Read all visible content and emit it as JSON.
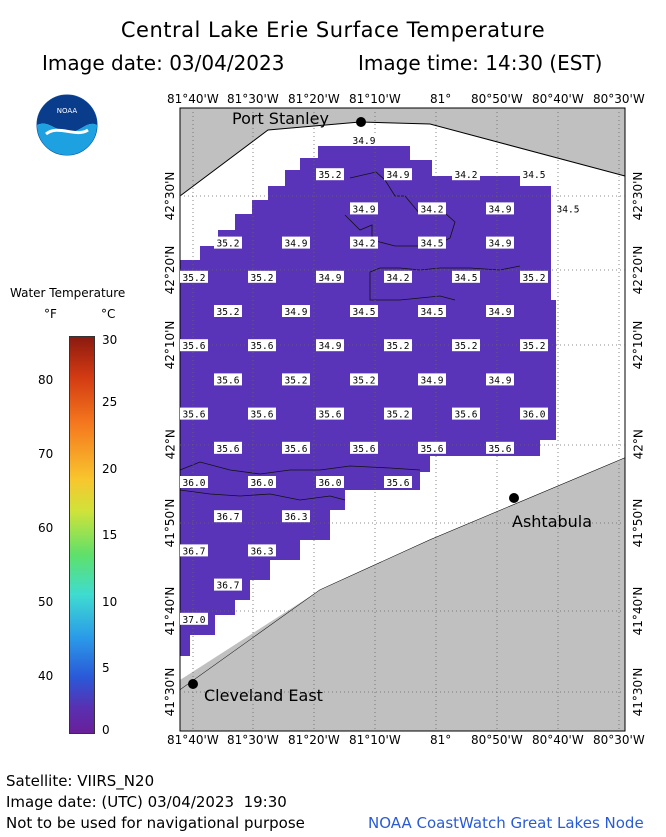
{
  "header": {
    "title": "Central Lake Erie Surface Temperature",
    "image_date": "Image date: 03/04/2023",
    "image_time": "Image time: 14:30 (EST)"
  },
  "logo": {
    "text": "NOAA"
  },
  "legend": {
    "title": "Water Temperature",
    "unit_f": "°F",
    "unit_c": "°C",
    "f_ticks": [
      "80",
      "70",
      "60",
      "50",
      "40"
    ],
    "c_ticks": [
      "30",
      "25",
      "20",
      "15",
      "10",
      "5",
      "0"
    ]
  },
  "axes": {
    "lon_ticks": [
      "81°40'W",
      "81°30'W",
      "81°20'W",
      "81°10'W",
      "81°",
      "80°50'W",
      "80°40'W",
      "80°30'W"
    ],
    "lat_ticks": [
      "42°30'N",
      "42°20'N",
      "42°10'N",
      "42°N",
      "41°50'N",
      "41°40'N",
      "41°30'N"
    ]
  },
  "cities": [
    {
      "name": "Port Stanley"
    },
    {
      "name": "Ashtabula"
    },
    {
      "name": "Cleveland East"
    }
  ],
  "temperature_labels": [
    {
      "row": 0,
      "values": [
        {
          "col": 2.5,
          "v": "34.9"
        }
      ]
    },
    {
      "row": 1,
      "values": [
        {
          "col": 2,
          "v": "35.2"
        },
        {
          "col": 3,
          "v": "34.9"
        },
        {
          "col": 4,
          "v": "34.2"
        },
        {
          "col": 5,
          "v": "34.5"
        }
      ]
    },
    {
      "row": 2,
      "values": [
        {
          "col": 2.5,
          "v": "34.9"
        },
        {
          "col": 3.5,
          "v": "34.2"
        },
        {
          "col": 4.5,
          "v": "34.9"
        },
        {
          "col": 5.5,
          "v": "34.5"
        }
      ]
    },
    {
      "row": 3,
      "values": [
        {
          "col": 0.5,
          "v": "35.2"
        },
        {
          "col": 1.5,
          "v": "34.9"
        },
        {
          "col": 2.5,
          "v": "34.2"
        },
        {
          "col": 3.5,
          "v": "34.5"
        },
        {
          "col": 4.5,
          "v": "34.9"
        }
      ]
    },
    {
      "row": 4,
      "values": [
        {
          "col": 0,
          "v": "35.2"
        },
        {
          "col": 1,
          "v": "35.2"
        },
        {
          "col": 2,
          "v": "34.9"
        },
        {
          "col": 3,
          "v": "34.2"
        },
        {
          "col": 4,
          "v": "34.5"
        },
        {
          "col": 5,
          "v": "35.2"
        }
      ]
    },
    {
      "row": 5,
      "values": [
        {
          "col": 0.5,
          "v": "35.2"
        },
        {
          "col": 1.5,
          "v": "34.9"
        },
        {
          "col": 2.5,
          "v": "34.5"
        },
        {
          "col": 3.5,
          "v": "34.5"
        },
        {
          "col": 4.5,
          "v": "34.9"
        }
      ]
    },
    {
      "row": 6,
      "values": [
        {
          "col": 0,
          "v": "35.6"
        },
        {
          "col": 1,
          "v": "35.6"
        },
        {
          "col": 2,
          "v": "34.9"
        },
        {
          "col": 3,
          "v": "35.2"
        },
        {
          "col": 4,
          "v": "35.2"
        },
        {
          "col": 5,
          "v": "35.2"
        }
      ]
    },
    {
      "row": 7,
      "values": [
        {
          "col": 0.5,
          "v": "35.6"
        },
        {
          "col": 1.5,
          "v": "35.2"
        },
        {
          "col": 2.5,
          "v": "35.2"
        },
        {
          "col": 3.5,
          "v": "34.9"
        },
        {
          "col": 4.5,
          "v": "34.9"
        }
      ]
    },
    {
      "row": 8,
      "values": [
        {
          "col": 0,
          "v": "35.6"
        },
        {
          "col": 1,
          "v": "35.6"
        },
        {
          "col": 2,
          "v": "35.6"
        },
        {
          "col": 3,
          "v": "35.2"
        },
        {
          "col": 4,
          "v": "35.6"
        },
        {
          "col": 5,
          "v": "36.0"
        }
      ]
    },
    {
      "row": 9,
      "values": [
        {
          "col": 0.5,
          "v": "35.6"
        },
        {
          "col": 1.5,
          "v": "35.6"
        },
        {
          "col": 2.5,
          "v": "35.6"
        },
        {
          "col": 3.5,
          "v": "35.6"
        },
        {
          "col": 4.5,
          "v": "35.6"
        }
      ]
    },
    {
      "row": 10,
      "values": [
        {
          "col": 0,
          "v": "36.0"
        },
        {
          "col": 1,
          "v": "36.0"
        },
        {
          "col": 2,
          "v": "36.0"
        },
        {
          "col": 3,
          "v": "35.6"
        }
      ]
    },
    {
      "row": 11,
      "values": [
        {
          "col": 0.5,
          "v": "36.7"
        },
        {
          "col": 1.5,
          "v": "36.3"
        }
      ]
    },
    {
      "row": 12,
      "values": [
        {
          "col": 0,
          "v": "36.7"
        },
        {
          "col": 1,
          "v": "36.3"
        }
      ]
    },
    {
      "row": 13,
      "values": [
        {
          "col": 0.5,
          "v": "36.7"
        }
      ]
    },
    {
      "row": 14,
      "values": [
        {
          "col": 0,
          "v": "37.0"
        }
      ]
    }
  ],
  "footer": {
    "satellite": "Satellite: VIIRS_N20",
    "utc_date": "Image date: (UTC) 03/04/2023  19:30",
    "disclaimer": "Not to be used for navigational purpose",
    "credit": "NOAA CoastWatch Great Lakes Node"
  },
  "colors": {
    "land": "#c0c0c0",
    "water_cloud": "#ffffff",
    "data_fill": "#5a34b8"
  }
}
